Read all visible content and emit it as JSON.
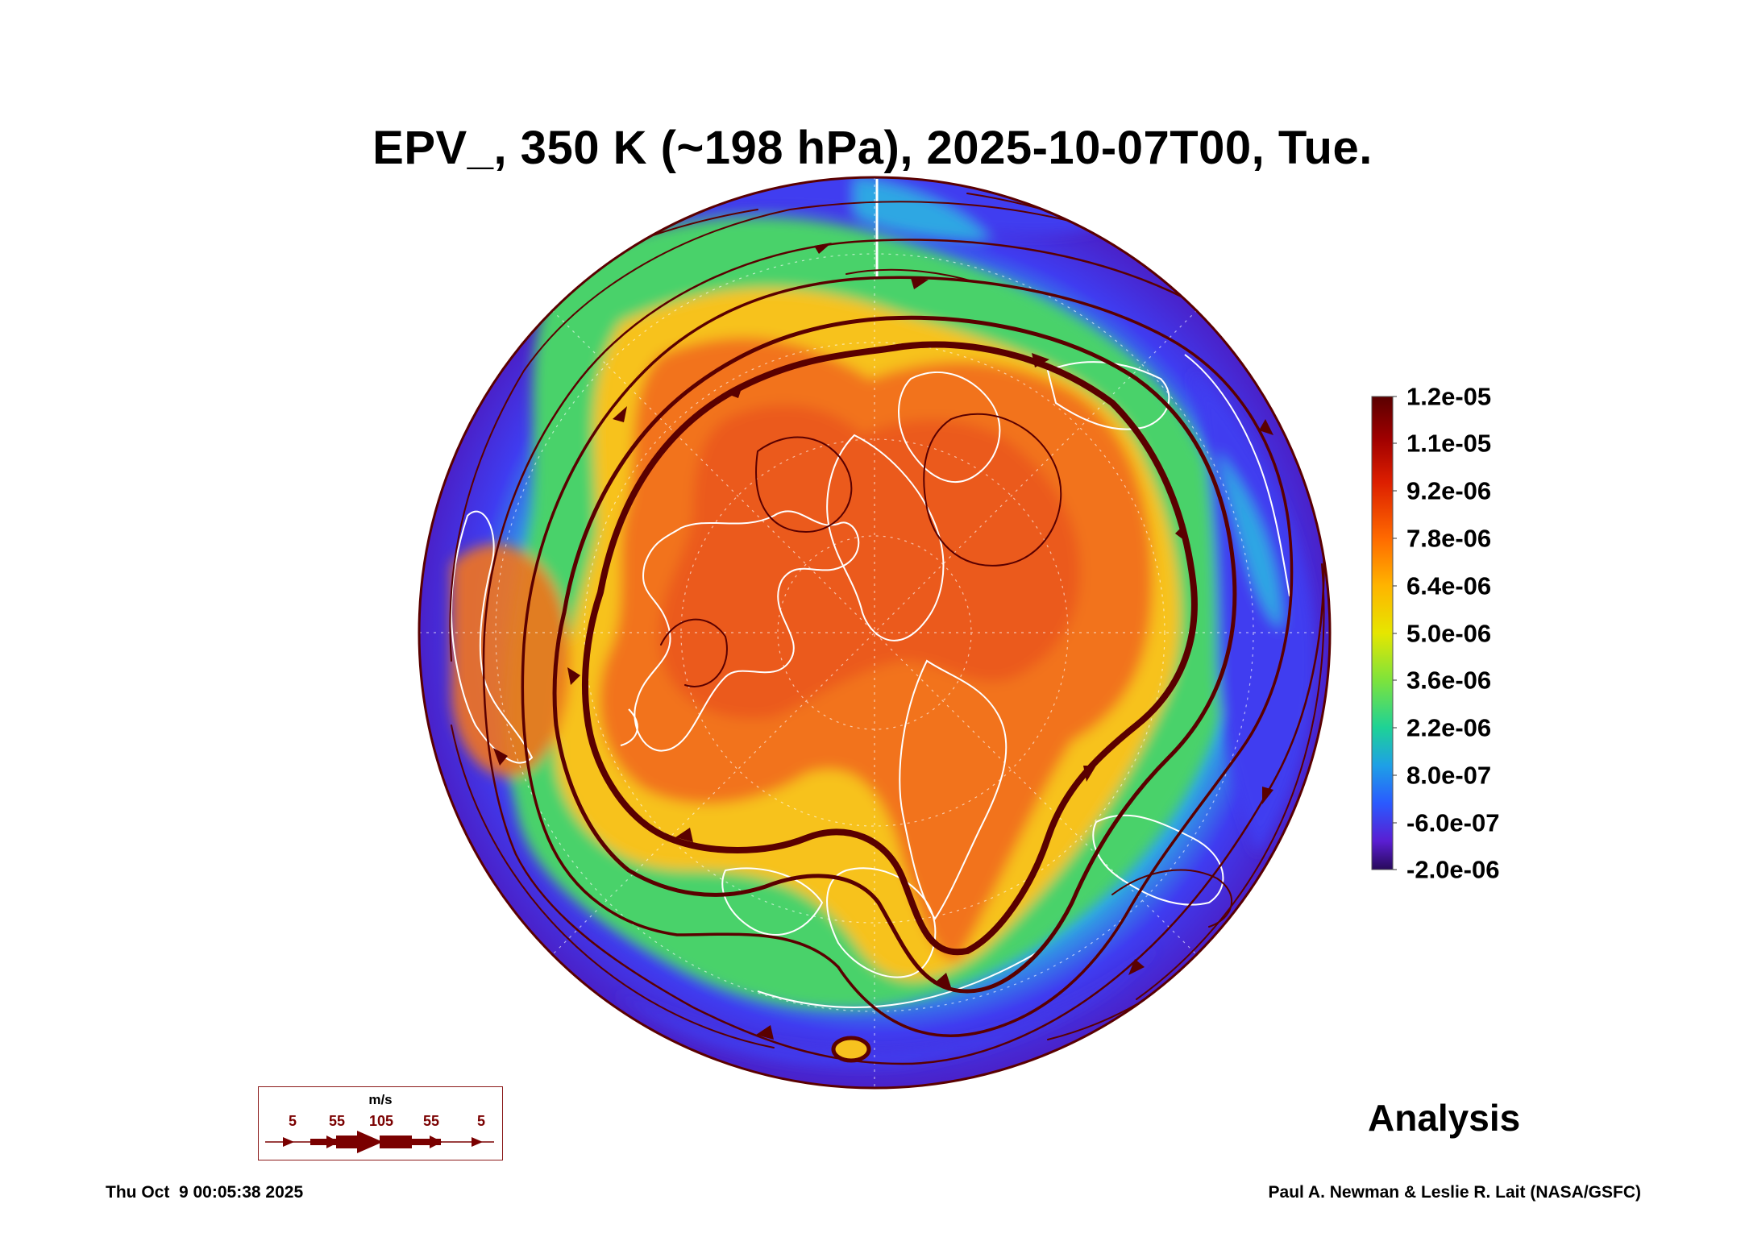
{
  "title": "EPV_, 350 K (~198 hPa), 2025-10-07T00, Tue.",
  "colorbar": {
    "labels": [
      "1.2e-05",
      "1.1e-05",
      "9.2e-06",
      "7.8e-06",
      "6.4e-06",
      "5.0e-06",
      "3.6e-06",
      "2.2e-06",
      "8.0e-07",
      "-6.0e-07",
      "-2.0e-06"
    ],
    "colors": [
      "#5a0000",
      "#a00000",
      "#dc1e00",
      "#ff6a00",
      "#ffb400",
      "#e6e600",
      "#7de33c",
      "#1ed296",
      "#1ea0e6",
      "#2a5aff",
      "#5a1ed2",
      "#280a5a"
    ]
  },
  "map": {
    "projection": "orthographic",
    "hemisphere": "north",
    "field_colors": {
      "high": "#f2731c",
      "core": "#e8541a",
      "mid": "#f7c21f",
      "green": "#49d26a",
      "cyan": "#2fa7e3",
      "blue": "#3f3cf0",
      "edge": "#4a21c9"
    },
    "streamline_color": "#5a0000",
    "coastline_color": "#ffffff"
  },
  "wind_key": {
    "unit": "m/s",
    "values": [
      "5",
      "55",
      "105",
      "55",
      "5"
    ],
    "color": "#7a0000"
  },
  "label_analysis": "Analysis",
  "footer_left": "Thu Oct  9 00:05:38 2025",
  "footer_right": "Paul A. Newman & Leslie R. Lait (NASA/GSFC)"
}
